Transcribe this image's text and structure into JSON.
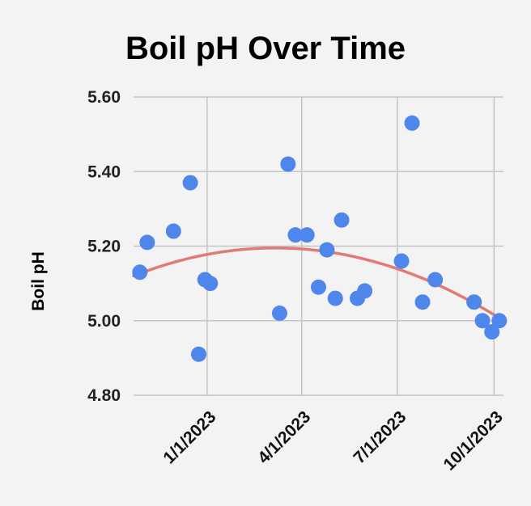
{
  "colors": {
    "background": "#f3f3f3",
    "grid": "#c4c4c4",
    "point": "#4f86ec",
    "trend": "#e07a72",
    "text": "#000000"
  },
  "chart_data": {
    "type": "scatter",
    "title": "Boil pH Over Time",
    "xlabel": "",
    "ylabel": "Boil pH",
    "xlim": [
      "2022-10-23",
      "2023-10-10"
    ],
    "ylim": [
      4.8,
      5.6
    ],
    "yticks": [
      4.8,
      5.0,
      5.2,
      5.4,
      5.6
    ],
    "ytick_labels": [
      "4.80",
      "5.00",
      "5.20",
      "5.40",
      "5.60"
    ],
    "xticks": [
      "2023-01-01",
      "2023-04-01",
      "2023-07-01",
      "2023-10-01"
    ],
    "xtick_labels": [
      "1/1/2023",
      "4/1/2023",
      "7/1/2023",
      "10/1/2023"
    ],
    "grid": true,
    "legend": "none",
    "series": [
      {
        "points": [
          {
            "x": "2022-10-29",
            "y": 5.13
          },
          {
            "x": "2022-11-05",
            "y": 5.21
          },
          {
            "x": "2022-11-30",
            "y": 5.24
          },
          {
            "x": "2022-12-16",
            "y": 5.37
          },
          {
            "x": "2022-12-24",
            "y": 4.91
          },
          {
            "x": "2022-12-30",
            "y": 5.11
          },
          {
            "x": "2023-01-04",
            "y": 5.1
          },
          {
            "x": "2023-03-11",
            "y": 5.02
          },
          {
            "x": "2023-03-19",
            "y": 5.42
          },
          {
            "x": "2023-03-26",
            "y": 5.23
          },
          {
            "x": "2023-04-06",
            "y": 5.23
          },
          {
            "x": "2023-04-17",
            "y": 5.09
          },
          {
            "x": "2023-04-25",
            "y": 5.19
          },
          {
            "x": "2023-05-03",
            "y": 5.06
          },
          {
            "x": "2023-05-09",
            "y": 5.27
          },
          {
            "x": "2023-05-24",
            "y": 5.06
          },
          {
            "x": "2023-05-31",
            "y": 5.08
          },
          {
            "x": "2023-07-05",
            "y": 5.16
          },
          {
            "x": "2023-07-15",
            "y": 5.53
          },
          {
            "x": "2023-07-25",
            "y": 5.05
          },
          {
            "x": "2023-08-06",
            "y": 5.11
          },
          {
            "x": "2023-09-12",
            "y": 5.05
          },
          {
            "x": "2023-09-20",
            "y": 5.0
          },
          {
            "x": "2023-09-29",
            "y": 4.97
          },
          {
            "x": "2023-10-06",
            "y": 5.0
          }
        ]
      }
    ],
    "trendline": {
      "type": "polynomial",
      "points": [
        {
          "x": "2022-10-23",
          "y": 5.12
        },
        {
          "x": "2023-03-08",
          "y": 5.195
        },
        {
          "x": "2023-10-10",
          "y": 5.0
        }
      ]
    }
  }
}
